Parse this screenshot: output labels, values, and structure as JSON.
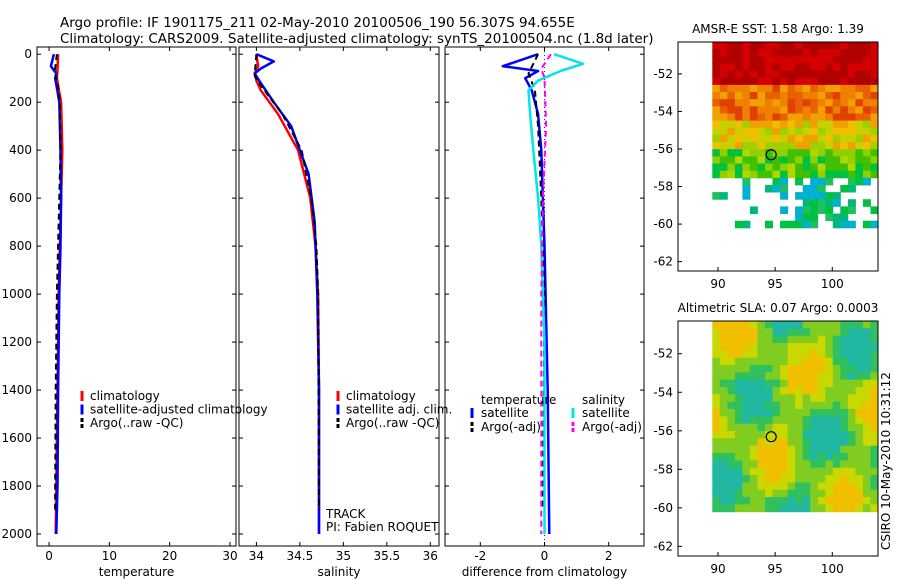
{
  "header": {
    "line1": "Argo profile: IF 1901175_211 02-May-2010 20100506_190 56.307S 94.655E",
    "line2": "Climatology: CARS2009. Satellite-adjusted climatology: synTS_20100504.nc (1.8d later)"
  },
  "side_label": "CSIRO 10-May-2010 10:31:12",
  "annotations": {
    "track": "TRACK",
    "pi": "PI: Fabien ROQUET"
  },
  "chart_data": [
    {
      "id": "temperature",
      "type": "line",
      "xlabel": "temperature",
      "xlim": [
        -2,
        31
      ],
      "ylim": [
        2050,
        -30
      ],
      "xticks": [
        0,
        10,
        20,
        30
      ],
      "yticks": [
        0,
        200,
        400,
        600,
        800,
        1000,
        1200,
        1400,
        1600,
        1800,
        2000
      ],
      "legend": {
        "placement": "lower-right",
        "entries": [
          "climatology",
          "satellite-adjusted climatology",
          "Argo(..raw -QC)"
        ]
      },
      "series": [
        {
          "name": "climatology",
          "color": "#ff0000",
          "dash": "",
          "width": 2.5,
          "x": [
            1.5,
            1.4,
            1.3,
            1.5,
            2.0,
            2.2,
            2.0,
            1.8,
            1.6,
            1.4,
            1.2,
            1.1
          ],
          "y": [
            0,
            60,
            100,
            130,
            200,
            400,
            600,
            800,
            1000,
            1400,
            1800,
            2000
          ]
        },
        {
          "name": "satellite-adjusted climatology",
          "color": "#0000ff",
          "dash": "",
          "width": 2.5,
          "x": [
            0.8,
            0.3,
            1.2,
            1.0,
            1.3,
            1.7,
            1.9,
            2.0,
            1.9,
            1.7,
            1.5,
            1.4,
            1.2
          ],
          "y": [
            0,
            50,
            80,
            100,
            140,
            200,
            400,
            600,
            800,
            1000,
            1400,
            1800,
            2000
          ]
        },
        {
          "name": "Argo(..raw -QC)",
          "color": "#000000",
          "dash": "6,4",
          "width": 2,
          "x": [
            1.3,
            1.0,
            1.2,
            1.5,
            1.8,
            1.9,
            1.7,
            1.5,
            1.3,
            1.1,
            1.0
          ],
          "y": [
            0,
            60,
            100,
            140,
            200,
            400,
            600,
            800,
            1000,
            1400,
            1900
          ]
        }
      ]
    },
    {
      "id": "salinity",
      "type": "line",
      "xlabel": "salinity",
      "xlim": [
        33.8,
        36.1
      ],
      "ylim": [
        2050,
        -30
      ],
      "xticks": [
        34,
        34.5,
        35,
        35.5,
        36
      ],
      "yticks": [
        0,
        200,
        400,
        600,
        800,
        1000,
        1200,
        1400,
        1600,
        1800,
        2000
      ],
      "legend": {
        "placement": "lower-right",
        "entries": [
          "climatology",
          "satellite adj. clim.",
          "Argo(..raw -QC)"
        ]
      },
      "series": [
        {
          "name": "climatology",
          "color": "#ff0000",
          "dash": "",
          "width": 2.5,
          "x": [
            34.0,
            34.02,
            33.98,
            34.0,
            34.05,
            34.25,
            34.48,
            34.62,
            34.68,
            34.71,
            34.72,
            34.72
          ],
          "y": [
            0,
            50,
            80,
            110,
            150,
            250,
            400,
            600,
            800,
            1000,
            1400,
            2000
          ]
        },
        {
          "name": "satellite adj. clim.",
          "color": "#0000ff",
          "dash": "",
          "width": 2.5,
          "x": [
            34.0,
            34.2,
            34.05,
            33.98,
            34.05,
            34.2,
            34.4,
            34.6,
            34.67,
            34.7,
            34.72,
            34.72
          ],
          "y": [
            0,
            30,
            60,
            80,
            120,
            200,
            300,
            500,
            700,
            1000,
            1400,
            2000
          ]
        },
        {
          "name": "Argo(..raw -QC)",
          "color": "#000000",
          "dash": "6,4",
          "width": 2,
          "x": [
            34.0,
            33.98,
            34.05,
            34.3,
            34.52,
            34.63,
            34.69,
            34.71,
            34.72
          ],
          "y": [
            0,
            90,
            130,
            250,
            400,
            600,
            800,
            1000,
            1900
          ]
        }
      ]
    },
    {
      "id": "difference",
      "type": "line",
      "xlabel": "difference from climatology",
      "xlim": [
        -3.1,
        3.1
      ],
      "ylim": [
        2050,
        -30
      ],
      "xticks": [
        -2,
        0,
        2
      ],
      "yticks": [
        0,
        200,
        400,
        600,
        800,
        1000,
        1200,
        1400,
        1600,
        1800,
        2000
      ],
      "legend": {
        "placement": "lower-right",
        "group_labels": [
          "temperature",
          "salinity"
        ],
        "entries": [
          "satellite",
          "Argo(-adj)",
          "satellite",
          "Argo(-adj)"
        ]
      },
      "series": [
        {
          "name": "temperature satellite",
          "color": "#0000ff",
          "dash": "",
          "width": 2.5,
          "x": [
            -0.2,
            -1.3,
            -0.2,
            -0.6,
            -0.4,
            -0.2,
            -0.1,
            0.0,
            0.1,
            0.15
          ],
          "y": [
            0,
            50,
            70,
            100,
            150,
            250,
            400,
            800,
            1400,
            2000
          ]
        },
        {
          "name": "temperature Argo(-adj)",
          "color": "#000000",
          "dash": "6,4",
          "width": 2,
          "x": [
            -0.2,
            -0.5,
            -0.3,
            -0.2,
            -0.1,
            0.0,
            -0.05
          ],
          "y": [
            0,
            80,
            150,
            300,
            600,
            1000,
            1900
          ]
        },
        {
          "name": "salinity satellite",
          "color": "#00e5e5",
          "dash": "",
          "width": 2.5,
          "x": [
            0.3,
            1.2,
            0.5,
            -0.2,
            -0.5,
            -0.45,
            -0.35,
            -0.2,
            -0.1,
            0.0,
            0.0
          ],
          "y": [
            0,
            40,
            70,
            110,
            150,
            250,
            400,
            600,
            800,
            1200,
            2000
          ]
        },
        {
          "name": "salinity Argo(-adj)",
          "color": "#ff00ff",
          "dash": "6,4",
          "width": 2,
          "x": [
            0.2,
            -0.1,
            0.0,
            0.05,
            -0.05,
            -0.1,
            -0.1
          ],
          "y": [
            0,
            60,
            100,
            300,
            600,
            1000,
            2000
          ]
        }
      ]
    },
    {
      "id": "sst_map",
      "type": "heatmap",
      "title": "AMSR-E SST: 1.58 Argo: 1.39",
      "xticks": [
        90,
        95,
        100
      ],
      "yticks": [
        -52,
        -54,
        -56,
        -58,
        -60,
        -62
      ],
      "xlim": [
        86.5,
        104
      ],
      "ylim": [
        -62.5,
        -50.3
      ],
      "data_extent": {
        "x": [
          89.5,
          104
        ],
        "y": [
          -60.2,
          -50.3
        ]
      },
      "profile_marker": {
        "lon": 94.655,
        "lat": -56.307
      }
    },
    {
      "id": "sla_map",
      "type": "heatmap",
      "title": "Altimetric SLA: 0.07 Argo: 0.0003",
      "xticks": [
        90,
        95,
        100
      ],
      "yticks": [
        -52,
        -54,
        -56,
        -58,
        -60,
        -62
      ],
      "xlim": [
        86.5,
        104
      ],
      "ylim": [
        -62.5,
        -50.3
      ],
      "data_extent": {
        "x": [
          89.5,
          104
        ],
        "y": [
          -60.2,
          -50.3
        ]
      },
      "profile_marker": {
        "lon": 94.655,
        "lat": -56.307
      }
    }
  ]
}
